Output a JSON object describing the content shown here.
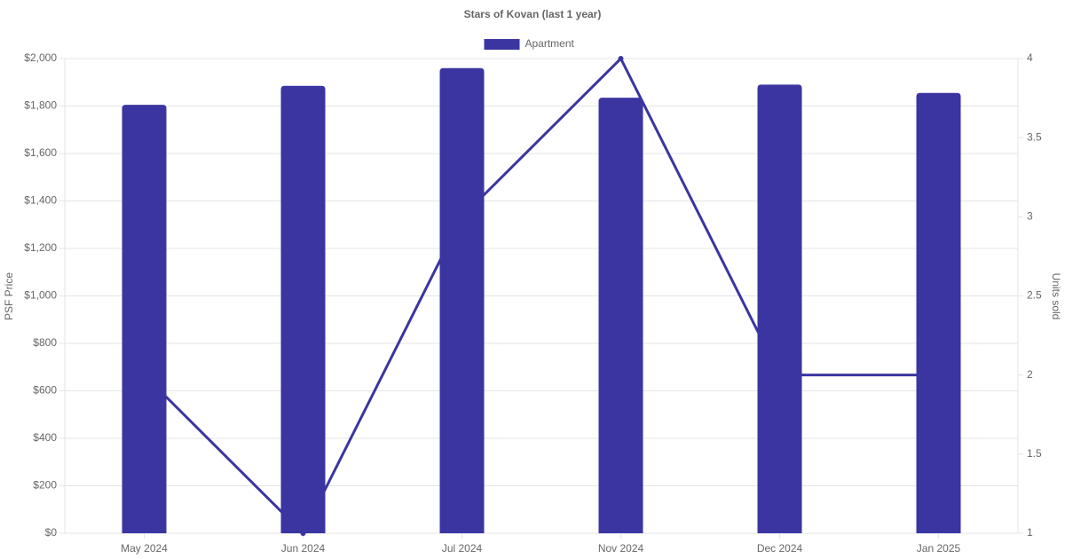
{
  "chart_data": {
    "type": "bar",
    "title": "Stars of Kovan (last 1 year)",
    "categories": [
      "May 2024",
      "Jun 2024",
      "Jul 2024",
      "Nov 2024",
      "Dec 2024",
      "Jan 2025"
    ],
    "series": [
      {
        "name": "Apartment",
        "color": "#3a35a0",
        "values": [
          1805,
          1885,
          1960,
          1835,
          1890,
          1855
        ]
      },
      {
        "type": "line",
        "axis": "y2",
        "color": "#3a35a0",
        "values": [
          2,
          1,
          3,
          4,
          2,
          2
        ]
      }
    ],
    "ylabel": "PSF Price",
    "y2label": "Units sold",
    "ylim": [
      0,
      2000
    ],
    "yticks": [
      {
        "value": 0,
        "label": "$0"
      },
      {
        "value": 200,
        "label": "$200"
      },
      {
        "value": 400,
        "label": "$400"
      },
      {
        "value": 600,
        "label": "$600"
      },
      {
        "value": 800,
        "label": "$800"
      },
      {
        "value": 1000,
        "label": "$1,000"
      },
      {
        "value": 1200,
        "label": "$1,200"
      },
      {
        "value": 1400,
        "label": "$1,400"
      },
      {
        "value": 1600,
        "label": "$1,600"
      },
      {
        "value": 1800,
        "label": "$1,800"
      },
      {
        "value": 2000,
        "label": "$2,000"
      }
    ],
    "y2lim": [
      1,
      4
    ],
    "y2ticks": [
      1,
      1.5,
      2,
      2.5,
      3,
      3.5,
      4
    ],
    "grid": true,
    "legend": "top"
  }
}
